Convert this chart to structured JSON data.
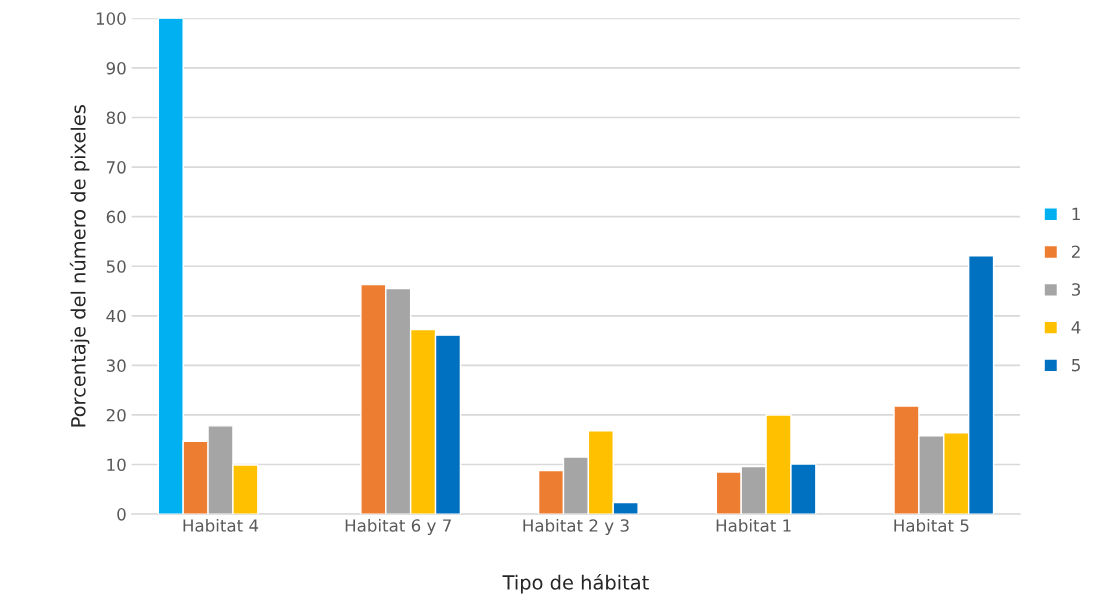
{
  "chart_data": {
    "type": "bar",
    "xlabel": "Tipo de hábitat",
    "ylabel": "Porcentaje del número de pixeles",
    "categories": [
      "Habitat 4",
      "Habitat 6 y 7",
      "Habitat 2 y 3",
      "Habitat 1",
      "Habitat 5"
    ],
    "series": [
      {
        "name": "1",
        "color": "#00b0f0",
        "values": [
          100,
          null,
          null,
          null,
          null
        ]
      },
      {
        "name": "2",
        "color": "#ed7d31",
        "values": [
          14.7,
          46.3,
          8.8,
          8.5,
          21.8
        ]
      },
      {
        "name": "3",
        "color": "#a5a5a5",
        "values": [
          17.8,
          45.5,
          11.5,
          9.6,
          15.8
        ]
      },
      {
        "name": "4",
        "color": "#ffc000",
        "values": [
          9.9,
          37.2,
          16.8,
          20.0,
          16.4
        ]
      },
      {
        "name": "5",
        "color": "#0070c0",
        "values": [
          null,
          36.1,
          2.3,
          10.1,
          52.1
        ]
      }
    ],
    "ylim": [
      0,
      100
    ],
    "yticks": [
      0,
      10,
      20,
      30,
      40,
      50,
      60,
      70,
      80,
      90,
      100
    ],
    "grid": "y",
    "legend": "right"
  }
}
